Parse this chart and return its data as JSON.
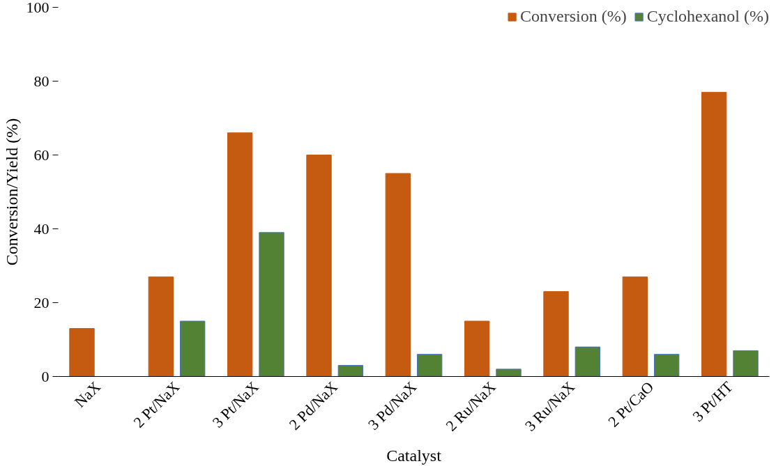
{
  "chart_data": {
    "type": "bar",
    "xlabel": "Catalyst",
    "ylabel": "Conversion/Yield (%)",
    "categories": [
      "NaX",
      "2 Pt/NaX",
      "3 Pt/NaX",
      "2 Pd/NaX",
      "3 Pd/NaX",
      "2 Ru/NaX",
      "3 Ru/NaX",
      "2 Pt/CaO",
      "3 Pt/HT"
    ],
    "series": [
      {
        "name": "Conversion (%)",
        "color": "#c55a11",
        "values": [
          13,
          27,
          66,
          60,
          55,
          15,
          23,
          27,
          77
        ]
      },
      {
        "name": "Cyclohexanol (%)",
        "color": "#548235",
        "values": [
          null,
          15,
          39,
          3,
          6,
          2,
          8,
          6,
          7
        ]
      }
    ],
    "ylim": [
      0,
      100
    ],
    "yticks": [
      0,
      20,
      40,
      60,
      80,
      100
    ],
    "grid": false,
    "legend": "top right"
  }
}
